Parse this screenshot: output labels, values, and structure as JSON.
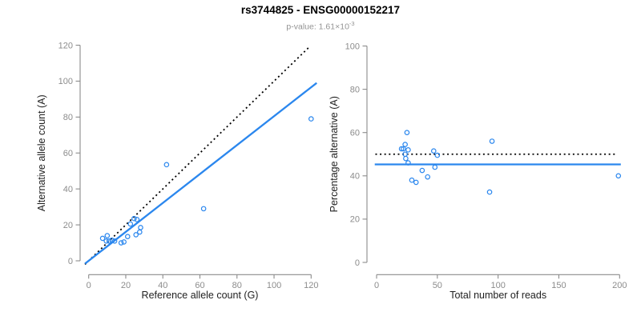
{
  "header": {
    "title": "rs3744825 - ENSG00000152217",
    "subtitle_base": "p-value: 1.61×10",
    "subtitle_exponent": "-3"
  },
  "colors": {
    "accent_blue": "#2B87EE",
    "line_black": "#000000",
    "axis_gray": "#8B8B8B",
    "tick_label_gray": "#8C8C8C",
    "axis_title_dark": "#1F1F1F",
    "subtitle_gray": "#949494"
  },
  "chart_data": [
    {
      "type": "scatter",
      "name": "allele-count-scatter",
      "title": "",
      "xlabel": "Reference allele count (G)",
      "ylabel": "Alternative allele count (A)",
      "xlim": [
        0,
        120
      ],
      "ylim": [
        0,
        120
      ],
      "xticks": [
        0,
        20,
        40,
        60,
        80,
        100,
        120
      ],
      "yticks": [
        0,
        20,
        40,
        60,
        80,
        100,
        120
      ],
      "grid": false,
      "legend": null,
      "marker": "open-circle",
      "points": [
        [
          7.5,
          12.5
        ],
        [
          10,
          14
        ],
        [
          9.5,
          11
        ],
        [
          11,
          11
        ],
        [
          12.5,
          11.5
        ],
        [
          14,
          11
        ],
        [
          17.5,
          10
        ],
        [
          19,
          10.5
        ],
        [
          21,
          13.5
        ],
        [
          22.5,
          20.5
        ],
        [
          25.5,
          14.5
        ],
        [
          27.5,
          16
        ],
        [
          28,
          18.5
        ],
        [
          24.5,
          23.5
        ],
        [
          26,
          23
        ],
        [
          42,
          53.5
        ],
        [
          62,
          29
        ],
        [
          120,
          79
        ]
      ],
      "lines": [
        {
          "name": "identity-line",
          "style": "dotted",
          "color": "#000000",
          "from": [
            -2,
            -2
          ],
          "to": [
            119.3,
            119.3
          ]
        },
        {
          "name": "regression-line",
          "style": "solid",
          "color": "#2B87EE",
          "from": [
            -2,
            -1.6
          ],
          "to": [
            123,
            99
          ]
        }
      ]
    },
    {
      "type": "scatter",
      "name": "percentage-alternative-scatter",
      "title": "",
      "xlabel": "Total number of reads",
      "ylabel": "Percentage alternative (A)",
      "xlim": [
        0,
        200
      ],
      "ylim": [
        0,
        100
      ],
      "xticks": [
        0,
        50,
        100,
        150,
        200
      ],
      "yticks": [
        0,
        20,
        40,
        60,
        80,
        100
      ],
      "grid": false,
      "legend": null,
      "marker": "open-circle",
      "points": [
        [
          25,
          60
        ],
        [
          23.5,
          54.5
        ],
        [
          20.5,
          52.5
        ],
        [
          22,
          52.5
        ],
        [
          26,
          52
        ],
        [
          23.5,
          50
        ],
        [
          24,
          48
        ],
        [
          26,
          46
        ],
        [
          47,
          51.5
        ],
        [
          50,
          49.5
        ],
        [
          48,
          44
        ],
        [
          37.5,
          42.5
        ],
        [
          42,
          39.5
        ],
        [
          29,
          38
        ],
        [
          32.5,
          37
        ],
        [
          95,
          56
        ],
        [
          93,
          32.5
        ],
        [
          199,
          40
        ]
      ],
      "lines": [
        {
          "name": "fifty-percent-line",
          "style": "dotted",
          "color": "#000000",
          "from": [
            -1,
            50
          ],
          "to": [
            198,
            50
          ]
        },
        {
          "name": "mean-percentage-line",
          "style": "solid",
          "color": "#2B87EE",
          "from": [
            -1.5,
            45.3
          ],
          "to": [
            201,
            45.3
          ]
        }
      ]
    }
  ]
}
